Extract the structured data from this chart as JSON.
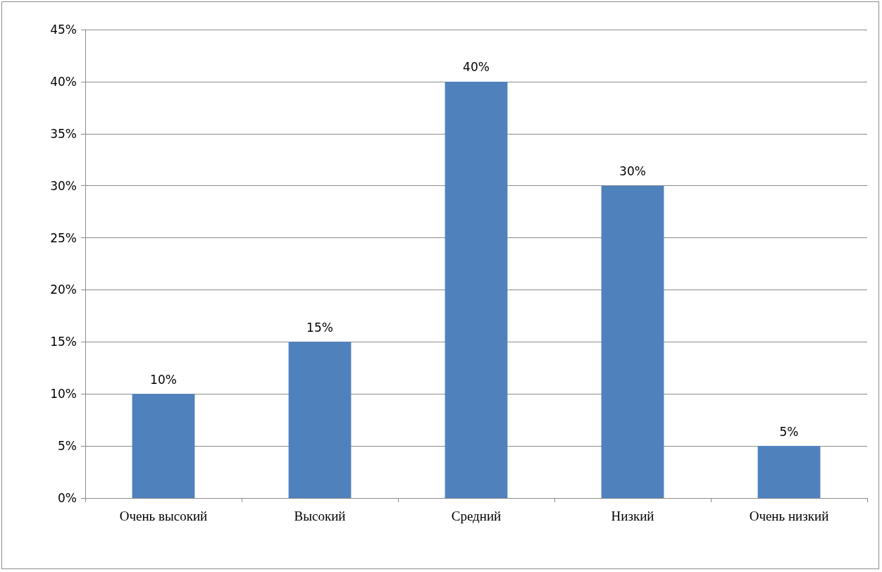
{
  "chart_data": {
    "type": "bar",
    "categories": [
      "Очень высокий",
      "Высокий",
      "Средний",
      "Низкий",
      "Очень низкий"
    ],
    "values": [
      10,
      15,
      40,
      30,
      5
    ],
    "color": "#4f81bd",
    "value_labels": [
      "10%",
      "15%",
      "40%",
      "30%",
      "5%"
    ],
    "ylim": [
      0,
      45
    ],
    "yticks": [
      {
        "value": 0,
        "label": "0%"
      },
      {
        "value": 5,
        "label": "5%"
      },
      {
        "value": 10,
        "label": "10%"
      },
      {
        "value": 15,
        "label": "15%"
      },
      {
        "value": 20,
        "label": "20%"
      },
      {
        "value": 25,
        "label": "25%"
      },
      {
        "value": 30,
        "label": "30%"
      },
      {
        "value": 35,
        "label": "35%"
      },
      {
        "value": 40,
        "label": "40%"
      },
      {
        "value": 45,
        "label": "45%"
      }
    ],
    "grid": "y"
  }
}
